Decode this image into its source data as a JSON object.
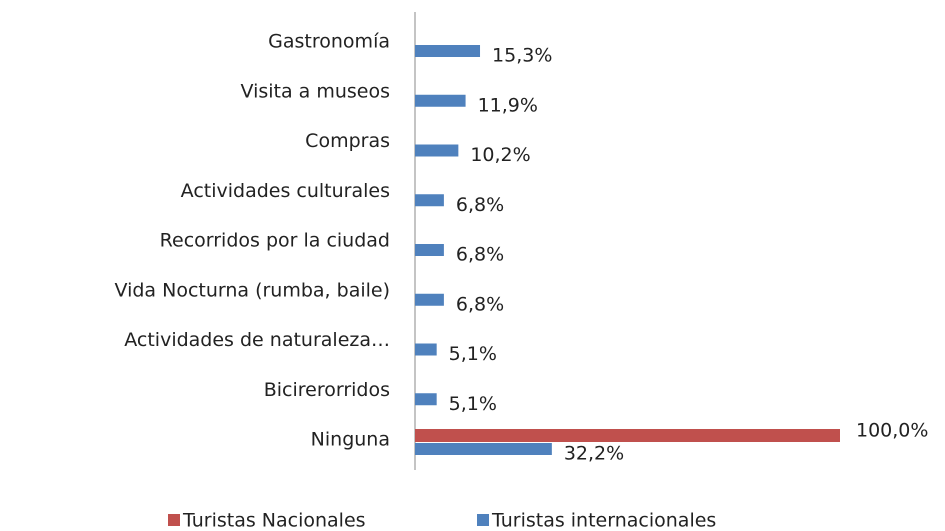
{
  "chart_data": {
    "type": "bar",
    "orientation": "horizontal",
    "categories": [
      "Gastronomía",
      "Visita a museos",
      "Compras",
      "Actividades culturales",
      "Recorridos por la ciudad",
      "Vida Nocturna (rumba, baile)",
      "Actividades de naturaleza…",
      "Bicirerorridos",
      "Ninguna"
    ],
    "series": [
      {
        "name": "Turistas Nacionales",
        "color": "#c0504d",
        "values": [
          null,
          null,
          null,
          null,
          null,
          null,
          null,
          null,
          100
        ],
        "value_labels": [
          null,
          null,
          null,
          null,
          null,
          null,
          null,
          null,
          "100,0%"
        ]
      },
      {
        "name": "Turistas internacionales",
        "color": "#4f81bd",
        "values": [
          15.3,
          11.9,
          10.2,
          6.8,
          6.8,
          6.8,
          5.1,
          5.1,
          32.2
        ],
        "value_labels": [
          "15,3%",
          "11,9%",
          "10,2%",
          "6,8%",
          "6,8%",
          "6,8%",
          "5,1%",
          "5,1%",
          "32,2%"
        ]
      }
    ],
    "xlim": [
      0,
      100
    ],
    "legend": "bottom"
  }
}
